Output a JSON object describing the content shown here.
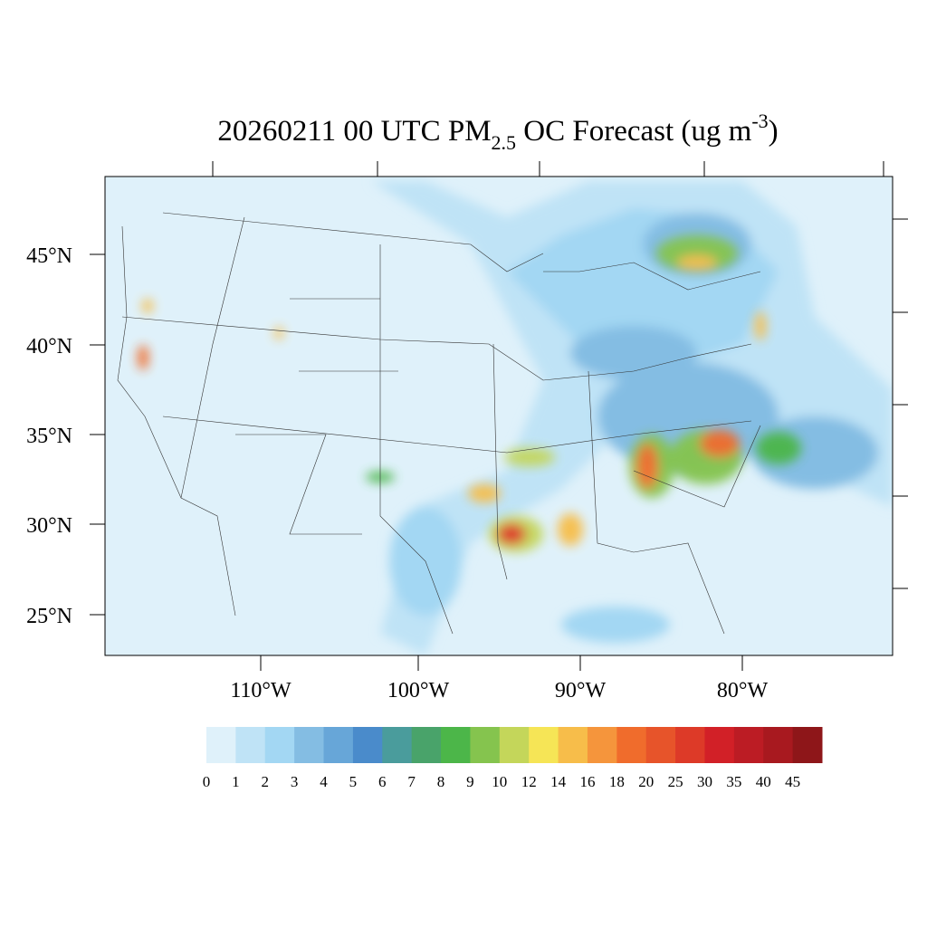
{
  "title": {
    "main": "20260211 00 UTC PM",
    "sub": "2.5",
    "rest": " OC Forecast (ug m",
    "sup": "-3",
    "end": ")"
  },
  "lat_labels": [
    "45°N",
    "40°N",
    "35°N",
    "30°N",
    "25°N"
  ],
  "lon_labels": [
    "110°W",
    "100°W",
    "90°W",
    "80°W"
  ],
  "colorbar": {
    "labels": [
      0,
      1,
      2,
      3,
      4,
      5,
      6,
      7,
      8,
      9,
      10,
      12,
      14,
      16,
      18,
      20,
      25,
      30,
      35,
      40,
      45
    ],
    "colors": [
      "#dff1fa",
      "#bfe3f6",
      "#a3d7f3",
      "#84bde3",
      "#67a6d8",
      "#4a8bcb",
      "#4a9c9c",
      "#49a36a",
      "#4cb649",
      "#85c44e",
      "#c4d65a",
      "#f6e556",
      "#f7bd4a",
      "#f5953c",
      "#f06c2c",
      "#e7542a",
      "#dd3a28",
      "#d22027",
      "#bc1c24",
      "#a8191f",
      "#8e1619"
    ]
  }
}
